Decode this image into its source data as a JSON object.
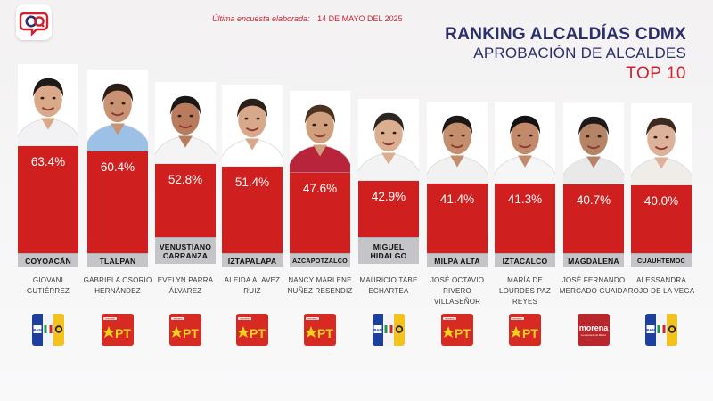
{
  "header": {
    "survey_label": "Última encuesta elaborada:",
    "survey_date": "14 DE MAYO DEL 2025",
    "title_line1": "RANKING ALCALDÍAS CDMX",
    "title_line2": "APROBACIÓN DE ALCALDES",
    "title_line3": "TOP 10"
  },
  "logo": {
    "icon": "cq-chat-logo-icon"
  },
  "colors": {
    "bar": "#cf1f1f",
    "title": "#2c2f6b",
    "accent": "#d41f2e",
    "label_bg": "#c4c4c9"
  },
  "chart_data": {
    "type": "bar",
    "title": "RANKING ALCALDÍAS CDMX",
    "subtitle": "APROBACIÓN DE ALCALDES",
    "ylim": [
      0,
      100
    ],
    "categories": [
      "COYOACÁN",
      "TLALPAN",
      "VENUSTIANO CARRANZA",
      "IZTAPALAPA",
      "AZCAPOTZALCO",
      "MIGUEL HIDALGO",
      "MILPA ALTA",
      "IZTACALCO",
      "MAGDALENA",
      "CUAUHTEMOC"
    ],
    "values": [
      63.4,
      60.4,
      52.8,
      51.4,
      47.6,
      42.9,
      41.4,
      41.3,
      40.7,
      40.0
    ],
    "value_labels": [
      "63.4%",
      "60.4%",
      "52.8%",
      "51.4%",
      "47.6%",
      "42.9%",
      "41.4%",
      "41.3%",
      "40.7%",
      "40.0%"
    ]
  },
  "mayors": [
    {
      "alcaldia": "COYOACÁN",
      "name": "GIOVANI GUTIÉRREZ",
      "party": "pan-pri-prd",
      "photo": "mayor-photo"
    },
    {
      "alcaldia": "TLALPAN",
      "name": "GABRIELA OSORIO HERNÁNDEZ",
      "party": "morena-pt",
      "photo": "mayor-photo"
    },
    {
      "alcaldia": "VENUSTIANO CARRANZA",
      "name": "EVELYN PARRA ÁLVAREZ",
      "party": "morena-pt",
      "photo": "mayor-photo"
    },
    {
      "alcaldia": "IZTAPALAPA",
      "name": "ALEIDA ALAVEZ RUIZ",
      "party": "morena-pt",
      "photo": "mayor-photo"
    },
    {
      "alcaldia": "AZCAPOTZALCO",
      "name": "NANCY MARLENE NUÑEZ RESENDIZ",
      "party": "morena-pt",
      "photo": "mayor-photo"
    },
    {
      "alcaldia": "MIGUEL HIDALGO",
      "name": "MAURICIO TABE ECHARTEA",
      "party": "pan-pri-prd",
      "photo": "mayor-photo"
    },
    {
      "alcaldia": "MILPA ALTA",
      "name": "JOSÉ OCTAVIO RIVERO VILLASEÑOR",
      "party": "morena-pt",
      "photo": "mayor-photo"
    },
    {
      "alcaldia": "IZTACALCO",
      "name": "MARÍA DE LOURDES PAZ REYES",
      "party": "morena-pt",
      "photo": "mayor-photo"
    },
    {
      "alcaldia": "MAGDALENA",
      "name": "JOSÉ FERNANDO MERCADO GUAIDA",
      "party": "morena",
      "photo": "mayor-photo"
    },
    {
      "alcaldia": "CUAUHTEMOC",
      "name": "ALESSANDRA ROJO DE LA VEGA",
      "party": "pan-pri-prd",
      "photo": "mayor-photo"
    }
  ],
  "party_logos": {
    "morena_text": "morena",
    "morena_tagline": "La esperanza de México",
    "pt_text": "PT",
    "pan_text": "PAN"
  }
}
